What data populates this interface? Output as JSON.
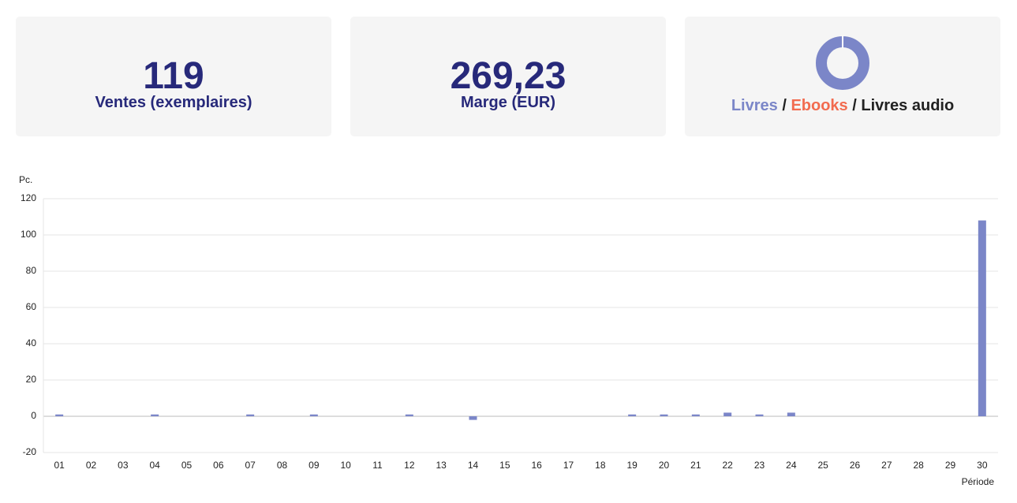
{
  "cards": [
    {
      "value": "119",
      "label": "Ventes (exemplaires)"
    },
    {
      "value": "269,23",
      "label": "Marge (EUR)"
    },
    {
      "donut": {
        "type": "pie",
        "categories": [
          "Livres",
          "Ebooks",
          "Livres audio"
        ],
        "colors": [
          "#7b86c8",
          "#f26b4f",
          "#222222"
        ],
        "values": [
          100,
          0,
          0
        ]
      },
      "separator": "/"
    }
  ],
  "chart_data": {
    "type": "bar",
    "ylabel": "Pc.",
    "xlabel": "Période",
    "categories": [
      "01",
      "02",
      "03",
      "04",
      "05",
      "06",
      "07",
      "08",
      "09",
      "10",
      "11",
      "12",
      "13",
      "14",
      "15",
      "16",
      "17",
      "18",
      "19",
      "20",
      "21",
      "22",
      "23",
      "24",
      "25",
      "26",
      "27",
      "28",
      "29",
      "30"
    ],
    "values": [
      1,
      0,
      0,
      1,
      0,
      0,
      1,
      0,
      1,
      0,
      0,
      1,
      0,
      -2,
      0,
      0,
      0,
      0,
      1,
      1,
      1,
      2,
      1,
      2,
      0,
      0,
      0,
      0,
      0,
      108
    ],
    "color": "#7b86c8",
    "ylim": [
      -20,
      120
    ],
    "yticks": [
      -20,
      0,
      20,
      40,
      60,
      80,
      100,
      120
    ],
    "grid": true
  }
}
